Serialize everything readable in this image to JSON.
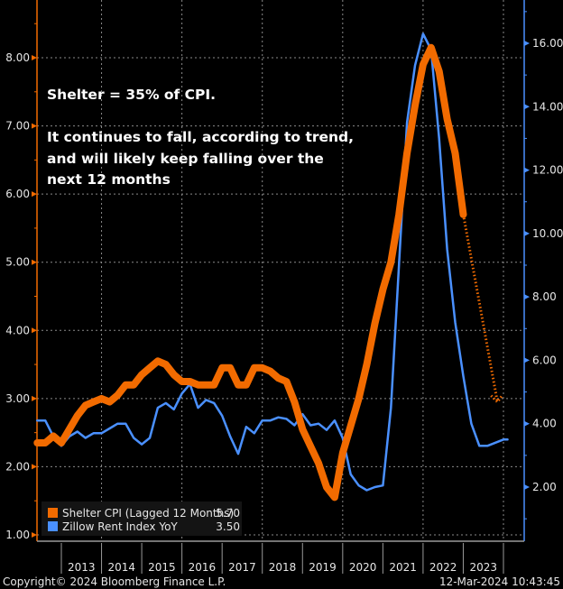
{
  "chart_data": {
    "type": "line",
    "title": "",
    "annotation": {
      "line1": "Shelter = 35% of CPI.",
      "line2": "It continues to fall, according to trend,",
      "line3": "and will likely keep falling over the",
      "line4": "next 12 months"
    },
    "left_axis": {
      "label": "",
      "ylim": [
        0.9,
        8.8
      ],
      "ticks": [
        1.0,
        2.0,
        3.0,
        4.0,
        5.0,
        6.0,
        7.0,
        8.0
      ],
      "tick_labels": [
        "1.00",
        "2.00",
        "3.00",
        "4.00",
        "5.00",
        "6.00",
        "7.00",
        "8.00"
      ],
      "color": "#f26b00"
    },
    "right_axis": {
      "label": "",
      "ylim": [
        0.8,
        17.6
      ],
      "ticks": [
        2,
        4,
        6,
        8,
        10,
        12,
        14,
        16
      ],
      "tick_labels": [
        "2.00",
        "4.00",
        "6.00",
        "8.00",
        "10.00",
        "12.00",
        "14.00",
        "16.00"
      ],
      "color": "#4a90ff"
    },
    "x_axis": {
      "xlim": [
        2012.4,
        2024.4
      ],
      "tick_labels": [
        "2013",
        "2014",
        "2015",
        "2016",
        "2017",
        "2018",
        "2019",
        "2020",
        "2021",
        "2022",
        "2023"
      ]
    },
    "grid": true,
    "legend": {
      "placement": "bottom-left",
      "entries": [
        {
          "name": "Shelter CPI (Lagged 12 Months)",
          "last_value": "5.70",
          "color": "#f26b00"
        },
        {
          "name": "Zillow Rent Index YoY",
          "last_value": "3.50",
          "color": "#4a90ff"
        }
      ]
    },
    "series": [
      {
        "name": "Shelter CPI (Lagged 12 Months)",
        "axis": "left",
        "color": "#f26b00",
        "x": [
          2012.4,
          2012.6,
          2012.8,
          2013.0,
          2013.2,
          2013.4,
          2013.6,
          2013.8,
          2014.0,
          2014.2,
          2014.4,
          2014.6,
          2014.8,
          2015.0,
          2015.2,
          2015.4,
          2015.6,
          2015.8,
          2016.0,
          2016.2,
          2016.4,
          2016.6,
          2016.8,
          2017.0,
          2017.2,
          2017.4,
          2017.6,
          2017.8,
          2018.0,
          2018.2,
          2018.4,
          2018.6,
          2018.8,
          2019.0,
          2019.2,
          2019.4,
          2019.6,
          2019.8,
          2020.0,
          2020.2,
          2020.4,
          2020.6,
          2020.8,
          2021.0,
          2021.2,
          2021.4,
          2021.6,
          2021.8,
          2022.0,
          2022.2,
          2022.4,
          2022.6,
          2022.8,
          2023.0
        ],
        "values": [
          2.35,
          2.35,
          2.45,
          2.35,
          2.55,
          2.75,
          2.9,
          2.95,
          3.0,
          2.95,
          3.05,
          3.2,
          3.2,
          3.35,
          3.45,
          3.55,
          3.5,
          3.35,
          3.25,
          3.25,
          3.2,
          3.2,
          3.2,
          3.45,
          3.45,
          3.2,
          3.2,
          3.45,
          3.45,
          3.4,
          3.3,
          3.25,
          2.95,
          2.55,
          2.3,
          2.05,
          1.7,
          1.55,
          2.2,
          2.6,
          3.0,
          3.5,
          4.1,
          4.6,
          5.0,
          5.7,
          6.6,
          7.3,
          7.9,
          8.15,
          7.8,
          7.1,
          6.6,
          5.7
        ]
      },
      {
        "name": "Shelter CPI projection (trend)",
        "axis": "left",
        "color": "#f26b00",
        "style": "dotted",
        "x": [
          2023.0,
          2023.85
        ],
        "values": [
          5.7,
          2.95
        ]
      },
      {
        "name": "Zillow Rent Index YoY",
        "axis": "right",
        "color": "#4a90ff",
        "x": [
          2012.4,
          2012.6,
          2012.8,
          2013.0,
          2013.2,
          2013.4,
          2013.6,
          2013.8,
          2014.0,
          2014.2,
          2014.4,
          2014.6,
          2014.8,
          2015.0,
          2015.2,
          2015.4,
          2015.6,
          2015.8,
          2016.0,
          2016.2,
          2016.4,
          2016.6,
          2016.8,
          2017.0,
          2017.2,
          2017.4,
          2017.6,
          2017.8,
          2018.0,
          2018.2,
          2018.4,
          2018.6,
          2018.8,
          2019.0,
          2019.2,
          2019.4,
          2019.6,
          2019.8,
          2020.0,
          2020.2,
          2020.4,
          2020.6,
          2020.8,
          2021.0,
          2021.2,
          2021.4,
          2021.6,
          2021.8,
          2022.0,
          2022.2,
          2022.4,
          2022.6,
          2022.8,
          2023.0,
          2023.2,
          2023.4,
          2023.6,
          2023.8,
          2024.0,
          2024.1
        ],
        "values": [
          4.1,
          4.1,
          3.6,
          3.3,
          3.6,
          3.75,
          3.55,
          3.7,
          3.7,
          3.85,
          4.0,
          4.0,
          3.55,
          3.35,
          3.55,
          4.5,
          4.65,
          4.45,
          4.95,
          5.25,
          4.5,
          4.75,
          4.65,
          4.25,
          3.6,
          3.05,
          3.9,
          3.7,
          4.1,
          4.1,
          4.2,
          4.15,
          3.95,
          4.3,
          3.95,
          4.0,
          3.8,
          4.1,
          3.55,
          2.4,
          2.05,
          1.9,
          2.0,
          2.05,
          4.5,
          9.0,
          13.5,
          15.3,
          16.3,
          15.8,
          13.0,
          9.5,
          7.2,
          5.5,
          4.0,
          3.3,
          3.3,
          3.4,
          3.5,
          3.5
        ]
      }
    ]
  },
  "footer": {
    "copyright": "Copyright© 2024 Bloomberg Finance L.P.",
    "timestamp": "12-Mar-2024 10:43:45"
  }
}
